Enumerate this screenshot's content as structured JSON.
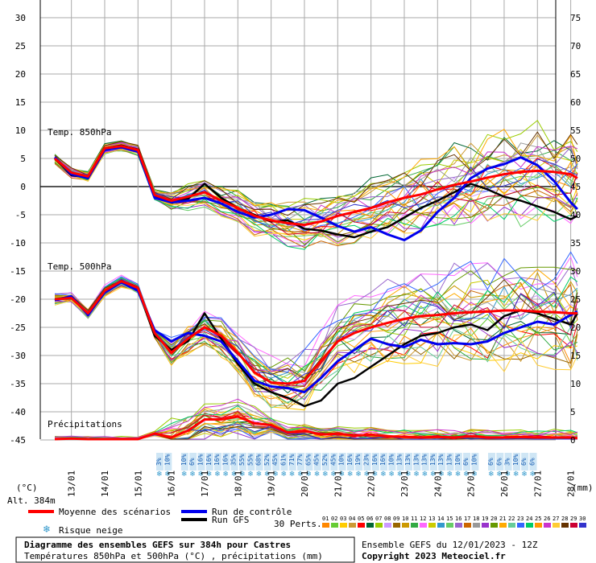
{
  "chart_data": [
    {
      "type": "line",
      "label": "Temp. 850hPa",
      "ylabel": "(°C)",
      "ylim": [
        -15,
        30
      ],
      "x_dates": [
        "13/01",
        "14/01",
        "15/01",
        "16/01",
        "17/01",
        "18/01",
        "19/01",
        "20/01",
        "21/01",
        "22/01",
        "23/01",
        "24/01",
        "25/01",
        "26/01",
        "27/01",
        "28/01"
      ],
      "series": [
        {
          "name": "Moyenne des scénarios",
          "color": "#ff0000",
          "x": [
            12.5,
            13.0,
            13.5,
            14.0,
            14.5,
            15.0,
            15.5,
            16.0,
            16.5,
            17.0,
            17.5,
            18.0,
            18.5,
            19.0,
            19.5,
            20.0,
            20.5,
            21.0,
            21.5,
            22.0,
            22.5,
            23.0,
            23.5,
            24.0,
            24.5,
            25.0,
            25.5,
            26.0,
            26.5,
            27.0,
            27.5,
            28.0,
            28.2
          ],
          "y": [
            5,
            2.5,
            1.8,
            6.8,
            7.2,
            6.5,
            -1.5,
            -2.5,
            -1.8,
            -1.0,
            -2.5,
            -3.8,
            -5.2,
            -6.0,
            -6.5,
            -6.8,
            -6.2,
            -5.2,
            -4.5,
            -3.8,
            -2.8,
            -2.0,
            -1.4,
            -0.5,
            0.3,
            0.9,
            1.6,
            2.2,
            2.6,
            2.8,
            2.6,
            2.2,
            1.5
          ]
        },
        {
          "name": "Run de contrôle",
          "color": "#0000ee",
          "x": [
            12.5,
            13.0,
            13.5,
            14.0,
            14.5,
            15.0,
            15.5,
            16.0,
            16.5,
            17.0,
            17.5,
            18.0,
            18.5,
            19.0,
            19.5,
            20.0,
            20.5,
            21.0,
            21.5,
            22.0,
            22.5,
            23.0,
            23.5,
            24.0,
            24.5,
            25.0,
            25.5,
            26.0,
            26.5,
            27.0,
            27.5,
            28.0,
            28.2
          ],
          "y": [
            5.2,
            2.2,
            1.5,
            6.5,
            7.0,
            6.2,
            -2.0,
            -2.8,
            -2.5,
            -2.0,
            -3.0,
            -4.5,
            -5.5,
            -5.0,
            -4.0,
            -4.2,
            -5.5,
            -7.0,
            -8.0,
            -7.2,
            -8.5,
            -9.5,
            -7.8,
            -4.5,
            -2.0,
            1.5,
            3.2,
            4.0,
            5.2,
            3.8,
            1.0,
            -2.8,
            -4.0
          ]
        },
        {
          "name": "Run GFS",
          "color": "#000000",
          "x": [
            12.5,
            13.0,
            13.5,
            14.0,
            14.5,
            15.0,
            15.5,
            16.0,
            16.5,
            17.0,
            17.5,
            18.0,
            18.5,
            19.0,
            19.5,
            20.0,
            20.5,
            21.0,
            21.5,
            22.0,
            22.5,
            23.0,
            23.5,
            24.0,
            24.5,
            25.0,
            25.5,
            26.0,
            26.5,
            27.0,
            27.5,
            28.0,
            28.2
          ],
          "y": [
            5.0,
            2.0,
            1.6,
            6.8,
            7.3,
            6.6,
            -1.8,
            -2.5,
            -2.2,
            0.5,
            -2.0,
            -3.8,
            -5.0,
            -6.2,
            -6.0,
            -7.5,
            -7.8,
            -8.5,
            -9.0,
            -8.0,
            -7.2,
            -5.5,
            -3.8,
            -2.5,
            -1.0,
            0.5,
            -0.5,
            -1.8,
            -2.5,
            -3.5,
            -4.5,
            -5.8,
            -5.2
          ]
        }
      ]
    },
    {
      "type": "line",
      "label": "Temp. 500hPa",
      "ylim": [
        -45,
        -15
      ],
      "series": [
        {
          "name": "Moyenne des scénarios",
          "color": "#ff0000",
          "x": [
            12.5,
            13.0,
            13.5,
            14.0,
            14.5,
            15.0,
            15.5,
            16.0,
            16.5,
            17.0,
            17.5,
            18.0,
            18.5,
            19.0,
            19.5,
            20.0,
            20.5,
            21.0,
            21.5,
            22.0,
            22.5,
            23.0,
            23.5,
            24.0,
            24.5,
            25.0,
            25.5,
            26.0,
            26.5,
            27.0,
            27.5,
            28.0,
            28.2
          ],
          "y": [
            -20,
            -19.8,
            -22.5,
            -18.5,
            -16.8,
            -18.0,
            -26,
            -29.5,
            -27,
            -25,
            -26.5,
            -29.5,
            -33.0,
            -34.8,
            -35.0,
            -34.5,
            -31.0,
            -27.5,
            -26.0,
            -25.0,
            -24.2,
            -23.5,
            -23.0,
            -22.8,
            -22.5,
            -22.3,
            -22.2,
            -22.0,
            -22.0,
            -22.2,
            -22.3,
            -22.5,
            -22.5
          ]
        },
        {
          "name": "Run de contrôle",
          "color": "#0000ee",
          "x": [
            12.5,
            13.0,
            13.5,
            14.0,
            14.5,
            15.0,
            15.5,
            16.0,
            16.5,
            17.0,
            17.5,
            18.0,
            18.5,
            19.0,
            19.5,
            20.0,
            20.5,
            21.0,
            21.5,
            22.0,
            22.5,
            23.0,
            23.5,
            24.0,
            24.5,
            25.0,
            25.5,
            26.0,
            26.5,
            27.0,
            27.5,
            28.0,
            28.2
          ],
          "y": [
            -20.2,
            -19.5,
            -22.8,
            -18.8,
            -17.0,
            -18.5,
            -25.5,
            -27.5,
            -26.0,
            -26.5,
            -27.5,
            -31.0,
            -34.5,
            -35.5,
            -35.8,
            -36.5,
            -34.0,
            -31.0,
            -29.0,
            -27.0,
            -28.0,
            -28.5,
            -27.2,
            -28.0,
            -27.8,
            -28.0,
            -27.5,
            -26.0,
            -25.0,
            -24.0,
            -24.5,
            -22.8,
            -22.2
          ]
        },
        {
          "name": "Run GFS",
          "color": "#000000",
          "x": [
            12.5,
            13.0,
            13.5,
            14.0,
            14.5,
            15.0,
            15.5,
            16.0,
            16.5,
            17.0,
            17.5,
            18.0,
            18.5,
            19.0,
            19.5,
            20.0,
            20.5,
            21.0,
            21.5,
            22.0,
            22.5,
            23.0,
            23.5,
            24.0,
            24.5,
            25.0,
            25.5,
            26.0,
            26.5,
            27.0,
            27.5,
            28.0,
            28.2
          ],
          "y": [
            -20.1,
            -19.6,
            -22.6,
            -18.6,
            -16.9,
            -18.2,
            -26.5,
            -29.0,
            -27.5,
            -22.5,
            -27.0,
            -31.5,
            -35.0,
            -36.5,
            -37.5,
            -39.0,
            -38.0,
            -35.0,
            -34.0,
            -32.0,
            -30.0,
            -28.0,
            -26.5,
            -26.0,
            -25.0,
            -24.5,
            -25.5,
            -23.0,
            -22.0,
            -22.5,
            -23.5,
            -24.5,
            -22.5
          ]
        }
      ]
    },
    {
      "type": "line",
      "label": "Précipitations",
      "ylabel": "(mm)",
      "ylim": [
        0,
        75
      ],
      "series": [
        {
          "name": "Moyenne des scénarios",
          "color": "#ff0000",
          "x": [
            12.5,
            13.0,
            13.5,
            14.0,
            14.5,
            15.0,
            15.5,
            16.0,
            16.5,
            17.0,
            17.5,
            18.0,
            18.5,
            19.0,
            19.5,
            20.0,
            20.5,
            21.0,
            21.5,
            22.0,
            22.5,
            23.0,
            23.5,
            24.0,
            24.5,
            25.0,
            25.5,
            26.0,
            26.5,
            27.0,
            27.5,
            28.0,
            28.2
          ],
          "y": [
            0,
            0.1,
            0,
            0,
            0,
            0,
            1.0,
            0.3,
            1.5,
            3.5,
            3.5,
            4.0,
            2.8,
            2.5,
            1.2,
            1.5,
            0.8,
            1.0,
            0.6,
            0.8,
            0.5,
            0.4,
            0.3,
            0.4,
            0.3,
            0.5,
            0.3,
            0.3,
            0.4,
            0.3,
            0.3,
            0.3,
            0.2
          ]
        }
      ]
    }
  ],
  "axes": {
    "left_ticks": [
      "30",
      "25",
      "20",
      "15",
      "10",
      "5",
      "0",
      "-5",
      "-10",
      "-15",
      "-20",
      "-25",
      "-30",
      "-35",
      "-40",
      "-45"
    ],
    "right_ticks": [
      "75",
      "70",
      "65",
      "60",
      "55",
      "50",
      "45",
      "40",
      "35",
      "30",
      "25",
      "20",
      "15",
      "10",
      "5",
      "0"
    ],
    "left_unit": "(°C)",
    "right_unit": "(mm)",
    "altitude": "Alt. 384m"
  },
  "snow_risk": {
    "marker": "❄",
    "percents": [
      "3%",
      "10%",
      "",
      "10%",
      "6%",
      "16%",
      "16%",
      "16%",
      "16%",
      "35%",
      "55%",
      "55%",
      "68%",
      "52%",
      "45%",
      "61%",
      "71%",
      "77%",
      "65%",
      "45%",
      "52%",
      "45%",
      "10%",
      "16%",
      "19%",
      "23%",
      "16%",
      "16%",
      "10%",
      "13%",
      "13%",
      "13%",
      "13%",
      "13%",
      "13%",
      "13%",
      "10%",
      "6%",
      "10%",
      "",
      "6%",
      "6%",
      "3%",
      "10%",
      "6%",
      "6%"
    ]
  },
  "labels": {
    "temp850": "Temp. 850hPa",
    "temp500": "Temp. 500hPa",
    "precip": "Précipitations"
  },
  "legend": {
    "mean": "Moyenne des scénarios",
    "control": "Run de contrôle",
    "gfs": "Run GFS",
    "snow": "Risque neige",
    "perts_label": "30 Perts.",
    "perts": [
      "01",
      "02",
      "03",
      "04",
      "05",
      "06",
      "07",
      "08",
      "09",
      "10",
      "11",
      "12",
      "13",
      "14",
      "15",
      "16",
      "17",
      "18",
      "19",
      "20",
      "21",
      "22",
      "23",
      "24",
      "25",
      "26",
      "27",
      "28",
      "29",
      "30"
    ],
    "pert_colors": [
      "#ff8800",
      "#66cc33",
      "#ffcc00",
      "#cc9933",
      "#ff0000",
      "#006633",
      "#99cc00",
      "#cc99ff",
      "#996600",
      "#cc9900",
      "#33aa44",
      "#ff66ff",
      "#cccc00",
      "#3399cc",
      "#66cc66",
      "#9966cc",
      "#cc6600",
      "#999999",
      "#9933cc",
      "#669900",
      "#ffaa00",
      "#66cc99",
      "#3366ff",
      "#00cc66",
      "#ff9900",
      "#cc33cc",
      "#ffcc33",
      "#663300",
      "#cc0033",
      "#3333cc"
    ],
    "mean_color": "#ff0000",
    "control_color": "#0000ee",
    "gfs_color": "#000000"
  },
  "footer": {
    "title": "Diagramme des ensembles GEFS sur 384h pour Castres",
    "subtitle": "Températures 850hPa et 500hPa (°C) , précipitations (mm)",
    "run": "Ensemble GEFS du 12/01/2023 - 12Z",
    "copyright": "Copyright 2023 Meteociel.fr"
  }
}
